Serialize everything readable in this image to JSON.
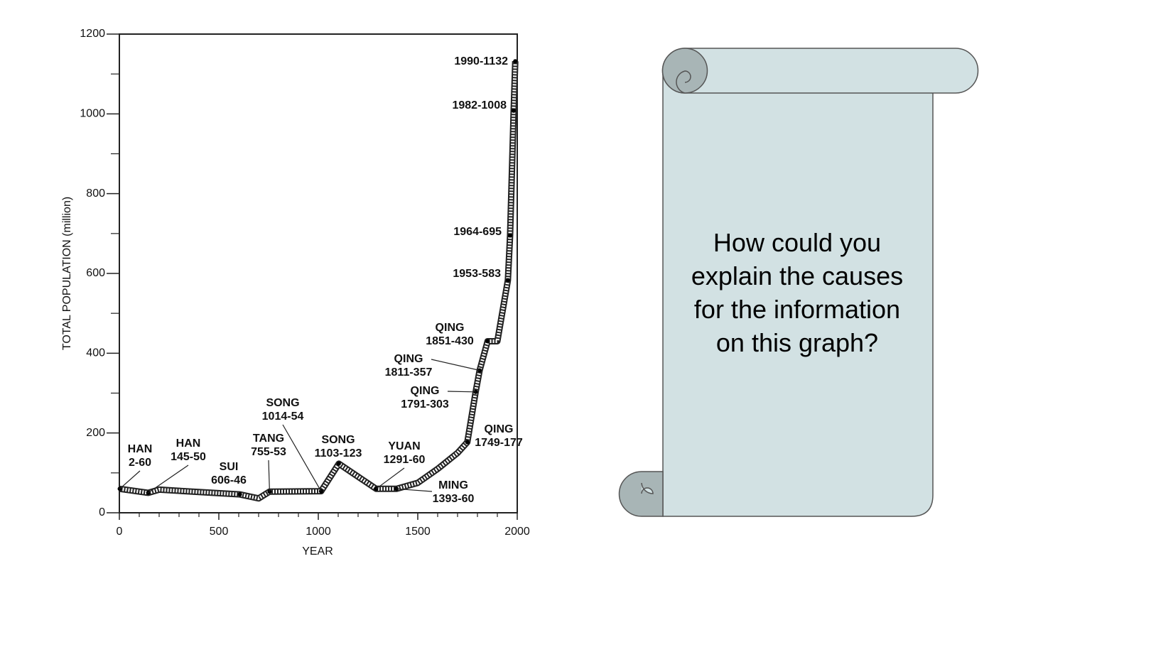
{
  "chart_data": {
    "type": "line",
    "xlabel": "YEAR",
    "ylabel": "TOTAL POPULATION (million)",
    "x": [
      2,
      145,
      200,
      606,
      700,
      755,
      1014,
      1103,
      1291,
      1393,
      1500,
      1600,
      1700,
      1749,
      1791,
      1811,
      1851,
      1900,
      1953,
      1964,
      1982,
      1990
    ],
    "values": [
      60,
      50,
      58,
      46,
      36,
      53,
      54,
      123,
      60,
      60,
      75,
      110,
      150,
      177,
      303,
      357,
      430,
      430,
      583,
      695,
      1008,
      1132
    ],
    "value_labels": [
      "HAN 2-60",
      "HAN 145-50",
      null,
      "SUI 606-46",
      null,
      "TANG 755-53",
      "SONG 1014-54",
      "SONG 1103-123",
      "YUAN 1291-60",
      "MING 1393-60",
      null,
      null,
      null,
      "QING 1749-177",
      "QING 1791-303",
      "QING 1811-357",
      "QING 1851-430",
      null,
      "1953-583",
      "1964-695",
      "1982-1008",
      "1990-1132"
    ],
    "color": "#222222",
    "xlim": [
      0,
      2000
    ],
    "xticks": [
      0,
      500,
      1000,
      1500,
      2000
    ],
    "xminorticks": [
      100,
      200,
      300,
      400,
      600,
      700,
      800,
      900,
      1100,
      1200,
      1300,
      1400,
      1600,
      1700,
      1800,
      1900
    ],
    "ylim": [
      0,
      1200
    ],
    "yticks": [
      0,
      200,
      400,
      600,
      800,
      1000,
      1200
    ],
    "yminorticks": [
      100,
      300,
      500,
      700,
      900,
      1100
    ]
  },
  "scroll": {
    "text": "How could you explain the causes for the information on this graph?"
  }
}
